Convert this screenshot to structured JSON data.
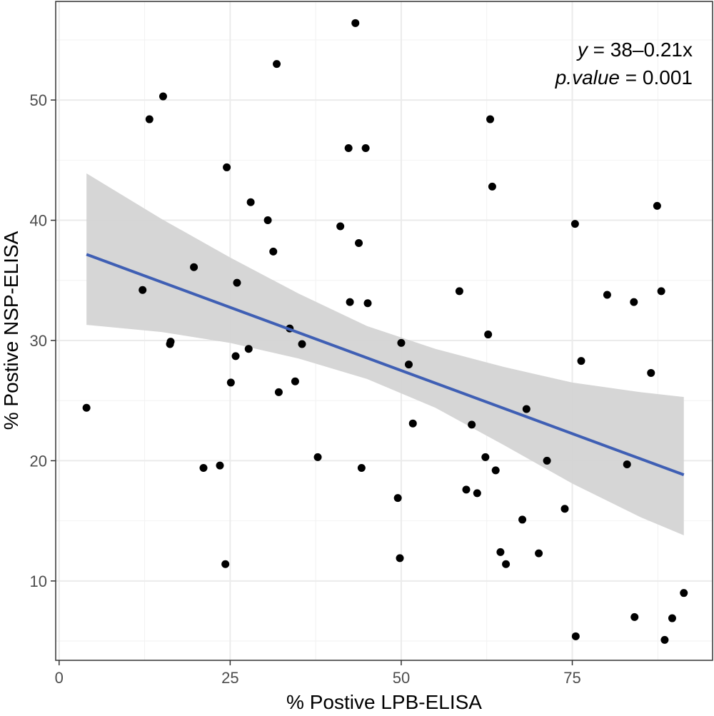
{
  "chart_data": {
    "type": "scatter",
    "title": "",
    "xlabel": "% Postive LPB-ELISA",
    "ylabel": "% Postive NSP-ELISA",
    "xlim": [
      -0.5,
      95.5
    ],
    "ylim": [
      3.4,
      58.2
    ],
    "x_ticks": [
      0,
      25,
      50,
      75
    ],
    "y_ticks": [
      10,
      20,
      30,
      40,
      50
    ],
    "x_tick_labels": [
      "0",
      "25",
      "50",
      "75"
    ],
    "y_tick_labels": [
      "10",
      "20",
      "30",
      "40",
      "50"
    ],
    "x_minor_ticks": [
      12.5,
      37.5,
      62.5,
      87.5
    ],
    "y_minor_ticks": [
      5,
      15,
      25,
      35,
      45,
      55
    ],
    "grid": true,
    "points": [
      {
        "x": 4,
        "y": 24.4
      },
      {
        "x": 12.2,
        "y": 34.2
      },
      {
        "x": 13.2,
        "y": 48.4
      },
      {
        "x": 15.2,
        "y": 50.3
      },
      {
        "x": 16.2,
        "y": 29.7
      },
      {
        "x": 16.3,
        "y": 29.9
      },
      {
        "x": 19.7,
        "y": 36.1
      },
      {
        "x": 21.1,
        "y": 19.4
      },
      {
        "x": 23.5,
        "y": 19.6
      },
      {
        "x": 24.3,
        "y": 11.4
      },
      {
        "x": 24.5,
        "y": 44.4
      },
      {
        "x": 25.1,
        "y": 26.5
      },
      {
        "x": 25.8,
        "y": 28.7
      },
      {
        "x": 26,
        "y": 34.8
      },
      {
        "x": 27.7,
        "y": 29.3
      },
      {
        "x": 28,
        "y": 41.5
      },
      {
        "x": 30.5,
        "y": 40
      },
      {
        "x": 31.3,
        "y": 37.4
      },
      {
        "x": 31.8,
        "y": 53
      },
      {
        "x": 32.1,
        "y": 25.7
      },
      {
        "x": 33.7,
        "y": 31
      },
      {
        "x": 34.5,
        "y": 26.6
      },
      {
        "x": 35.5,
        "y": 29.7
      },
      {
        "x": 37.8,
        "y": 20.3
      },
      {
        "x": 41.1,
        "y": 39.5
      },
      {
        "x": 42.3,
        "y": 46
      },
      {
        "x": 42.5,
        "y": 33.2
      },
      {
        "x": 43.3,
        "y": 56.4
      },
      {
        "x": 43.8,
        "y": 38.1
      },
      {
        "x": 44.2,
        "y": 19.4
      },
      {
        "x": 44.8,
        "y": 46
      },
      {
        "x": 45.1,
        "y": 33.1
      },
      {
        "x": 49.5,
        "y": 16.9
      },
      {
        "x": 49.8,
        "y": 11.9
      },
      {
        "x": 50,
        "y": 29.8
      },
      {
        "x": 51.1,
        "y": 28
      },
      {
        "x": 51.7,
        "y": 23.1
      },
      {
        "x": 58.5,
        "y": 34.1
      },
      {
        "x": 59.5,
        "y": 17.6
      },
      {
        "x": 60.3,
        "y": 23
      },
      {
        "x": 61.1,
        "y": 17.3
      },
      {
        "x": 62.3,
        "y": 20.3
      },
      {
        "x": 62.7,
        "y": 30.5
      },
      {
        "x": 63,
        "y": 48.4
      },
      {
        "x": 63.3,
        "y": 42.8
      },
      {
        "x": 63.8,
        "y": 19.2
      },
      {
        "x": 64.5,
        "y": 12.4
      },
      {
        "x": 65.3,
        "y": 11.4
      },
      {
        "x": 67.7,
        "y": 15.1
      },
      {
        "x": 68.3,
        "y": 24.3
      },
      {
        "x": 70.1,
        "y": 12.3
      },
      {
        "x": 71.3,
        "y": 20
      },
      {
        "x": 73.9,
        "y": 16
      },
      {
        "x": 75.4,
        "y": 39.7
      },
      {
        "x": 75.5,
        "y": 5.4
      },
      {
        "x": 76.3,
        "y": 28.3
      },
      {
        "x": 80.1,
        "y": 33.8
      },
      {
        "x": 83,
        "y": 19.7
      },
      {
        "x": 84,
        "y": 33.2
      },
      {
        "x": 84.1,
        "y": 7
      },
      {
        "x": 86.5,
        "y": 27.3
      },
      {
        "x": 87.4,
        "y": 41.2
      },
      {
        "x": 88,
        "y": 34.1
      },
      {
        "x": 88.5,
        "y": 5.1
      },
      {
        "x": 89.6,
        "y": 6.9
      },
      {
        "x": 91.3,
        "y": 9
      }
    ],
    "regression": {
      "intercept": 38,
      "slope": -0.21,
      "x_range": [
        4,
        91.3
      ],
      "line_color": "#3f5fb4",
      "confidence_band": [
        {
          "x": 4,
          "lower": 31.3,
          "upper": 43.9
        },
        {
          "x": 15,
          "lower": 30.7,
          "upper": 40.1
        },
        {
          "x": 25,
          "lower": 29.8,
          "upper": 36.9
        },
        {
          "x": 35,
          "lower": 28.5,
          "upper": 33.9
        },
        {
          "x": 45,
          "lower": 26.8,
          "upper": 31.2
        },
        {
          "x": 55,
          "lower": 24.4,
          "upper": 29.3
        },
        {
          "x": 65,
          "lower": 21.3,
          "upper": 27.8
        },
        {
          "x": 75,
          "lower": 18.1,
          "upper": 26.5
        },
        {
          "x": 85,
          "lower": 15.3,
          "upper": 25.7
        },
        {
          "x": 91.3,
          "lower": 13.8,
          "upper": 25.3
        }
      ],
      "band_color": "#d4d4d4"
    },
    "point_color": "#000000",
    "annotation": {
      "line1_var": "y",
      "line1_rest": " = 38–0.21x",
      "line2_var": "p.value",
      "line2_rest": " = 0.001",
      "placement": "top-right"
    }
  }
}
